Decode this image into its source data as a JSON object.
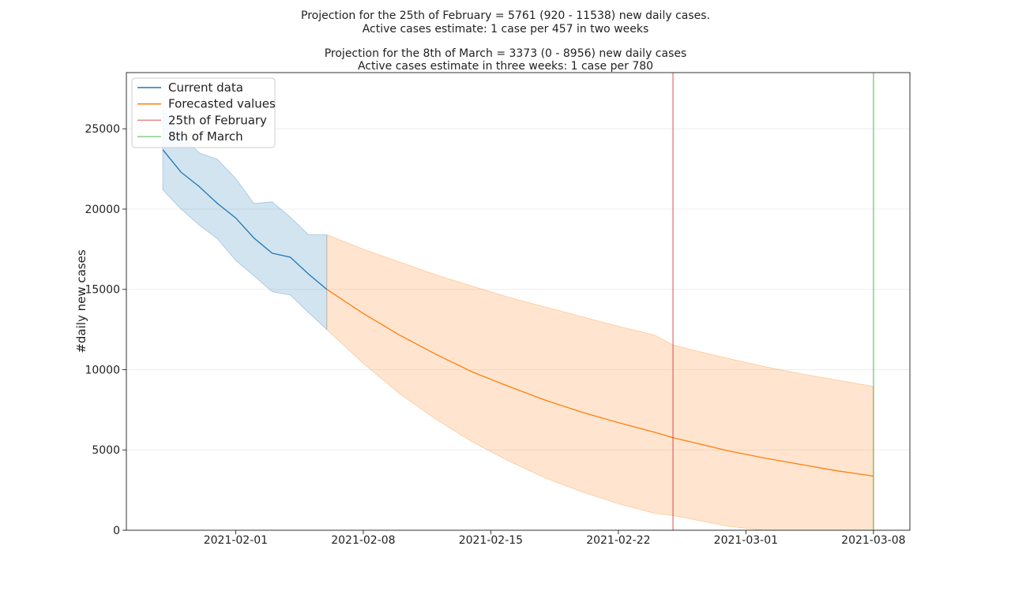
{
  "titles": [
    "Projection for the 25th of February = 5761 (920 - 11538) new daily cases.",
    "Active cases estimate: 1 case per 457 in two weeks",
    "Projection for the 8th of March = 3373 (0 - 8956) new daily cases",
    "Active cases estimate in three weeks: 1 case per 780"
  ],
  "chart_data": {
    "type": "line",
    "title": "Projection for the 25th of February = 5761 (920 - 11538) new daily cases.\nActive cases estimate: 1 case per 457 in two weeks\n\nProjection for the 8th of March = 3373 (0 - 8956) new daily cases\nActive cases estimate in three weeks: 1 case per 780",
    "xlabel": "",
    "ylabel": "#daily new cases",
    "xlim": [
      "2021-01-26",
      "2021-03-10"
    ],
    "ylim": [
      0,
      28500
    ],
    "grid": true,
    "legend_position": "top-left",
    "x_ticks": [
      "2021-02-01",
      "2021-02-08",
      "2021-02-15",
      "2021-02-22",
      "2021-03-01",
      "2021-03-08"
    ],
    "y_ticks": [
      0,
      5000,
      10000,
      15000,
      20000,
      25000
    ],
    "series": [
      {
        "name": "Current data",
        "color": "#1f77b4",
        "x": [
          "2021-01-28",
          "2021-01-29",
          "2021-01-30",
          "2021-01-31",
          "2021-02-01",
          "2021-02-02",
          "2021-02-03",
          "2021-02-04",
          "2021-02-05",
          "2021-02-06"
        ],
        "values": [
          23700,
          22300,
          21400,
          20350,
          19450,
          18200,
          17250,
          17000,
          15950,
          15000
        ],
        "lower": [
          21200,
          20000,
          19000,
          18150,
          16800,
          15850,
          14850,
          14650,
          13550,
          12500
        ],
        "upper": [
          26200,
          24600,
          23500,
          23100,
          21900,
          20350,
          20450,
          19500,
          18400,
          18400
        ]
      },
      {
        "name": "Forecasted values",
        "color": "#ff7f0e",
        "x": [
          "2021-02-06",
          "2021-02-08",
          "2021-02-10",
          "2021-02-12",
          "2021-02-14",
          "2021-02-16",
          "2021-02-18",
          "2021-02-20",
          "2021-02-22",
          "2021-02-24",
          "2021-02-25",
          "2021-02-26",
          "2021-02-28",
          "2021-03-02",
          "2021-03-04",
          "2021-03-06",
          "2021-03-08"
        ],
        "values": [
          15000,
          13500,
          12150,
          10950,
          9850,
          8950,
          8100,
          7350,
          6700,
          6100,
          5761,
          5500,
          4950,
          4500,
          4100,
          3700,
          3373
        ],
        "lower": [
          12500,
          10400,
          8500,
          6900,
          5500,
          4300,
          3250,
          2400,
          1650,
          1050,
          920,
          700,
          250,
          0,
          0,
          0,
          0
        ],
        "upper": [
          18400,
          17500,
          16700,
          15900,
          15200,
          14500,
          13900,
          13300,
          12700,
          12150,
          11538,
          11250,
          10700,
          10200,
          9750,
          9350,
          8956
        ]
      }
    ],
    "vlines": [
      {
        "name": "25th of February",
        "x": "2021-02-25",
        "color": "#d62728"
      },
      {
        "name": "8th of March",
        "x": "2021-03-08",
        "color": "#2ca02c"
      }
    ]
  }
}
